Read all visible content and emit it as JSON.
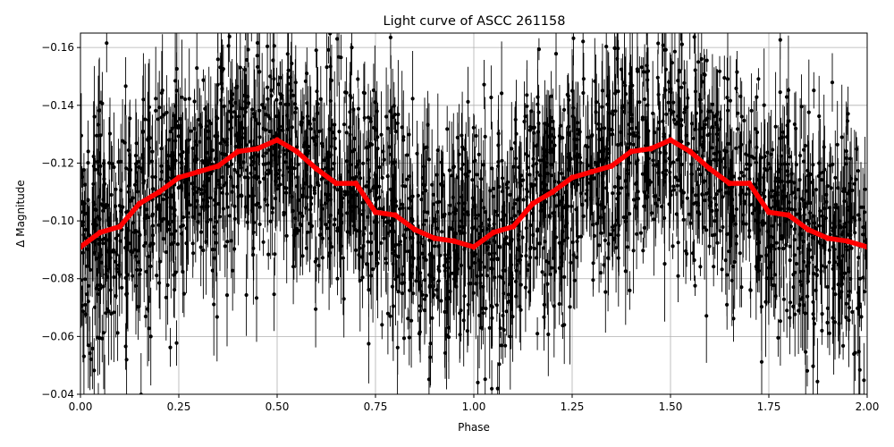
{
  "chart_data": {
    "type": "scatter",
    "title": "Light curve of ASCC 261158",
    "xlabel": "Phase",
    "ylabel": "Δ Magnitude",
    "xlim": [
      0.0,
      2.0
    ],
    "ylim": [
      -0.04,
      -0.165
    ],
    "y_inverted": true,
    "grid": true,
    "x_ticks": [
      0.0,
      0.25,
      0.5,
      0.75,
      1.0,
      1.25,
      1.5,
      1.75,
      2.0
    ],
    "x_tick_labels": [
      "0.00",
      "0.25",
      "0.50",
      "0.75",
      "1.00",
      "1.25",
      "1.50",
      "1.75",
      "2.00"
    ],
    "y_ticks": [
      -0.04,
      -0.06,
      -0.08,
      -0.1,
      -0.12,
      -0.14,
      -0.16
    ],
    "y_tick_labels": [
      "−0.04",
      "−0.06",
      "−0.08",
      "−0.10",
      "−0.12",
      "−0.14",
      "−0.16"
    ],
    "series": [
      {
        "kind": "errorbar-scatter",
        "color": "#000000",
        "scatter_amplitude": 0.026,
        "errorbar_half_range": [
          0.003,
          0.02
        ]
      },
      {
        "kind": "line",
        "color": "#ff0000",
        "x": [
          0.0,
          0.05,
          0.1,
          0.15,
          0.2,
          0.25,
          0.3,
          0.35,
          0.4,
          0.45,
          0.5,
          0.55,
          0.6,
          0.65,
          0.7,
          0.75,
          0.8,
          0.85,
          0.9,
          0.95,
          1.0,
          1.05,
          1.1,
          1.15,
          1.2,
          1.25,
          1.3,
          1.35,
          1.4,
          1.45,
          1.5,
          1.55,
          1.6,
          1.65,
          1.7,
          1.75,
          1.8,
          1.85,
          1.9,
          1.95,
          2.0
        ],
        "y": [
          -0.091,
          -0.096,
          -0.098,
          -0.106,
          -0.11,
          -0.115,
          -0.117,
          -0.119,
          -0.124,
          -0.125,
          -0.128,
          -0.124,
          -0.118,
          -0.113,
          -0.113,
          -0.103,
          -0.102,
          -0.097,
          -0.094,
          -0.093,
          -0.091,
          -0.096,
          -0.098,
          -0.106,
          -0.11,
          -0.115,
          -0.117,
          -0.119,
          -0.124,
          -0.125,
          -0.128,
          -0.124,
          -0.118,
          -0.113,
          -0.113,
          -0.103,
          -0.102,
          -0.097,
          -0.094,
          -0.093,
          -0.091
        ]
      }
    ]
  }
}
